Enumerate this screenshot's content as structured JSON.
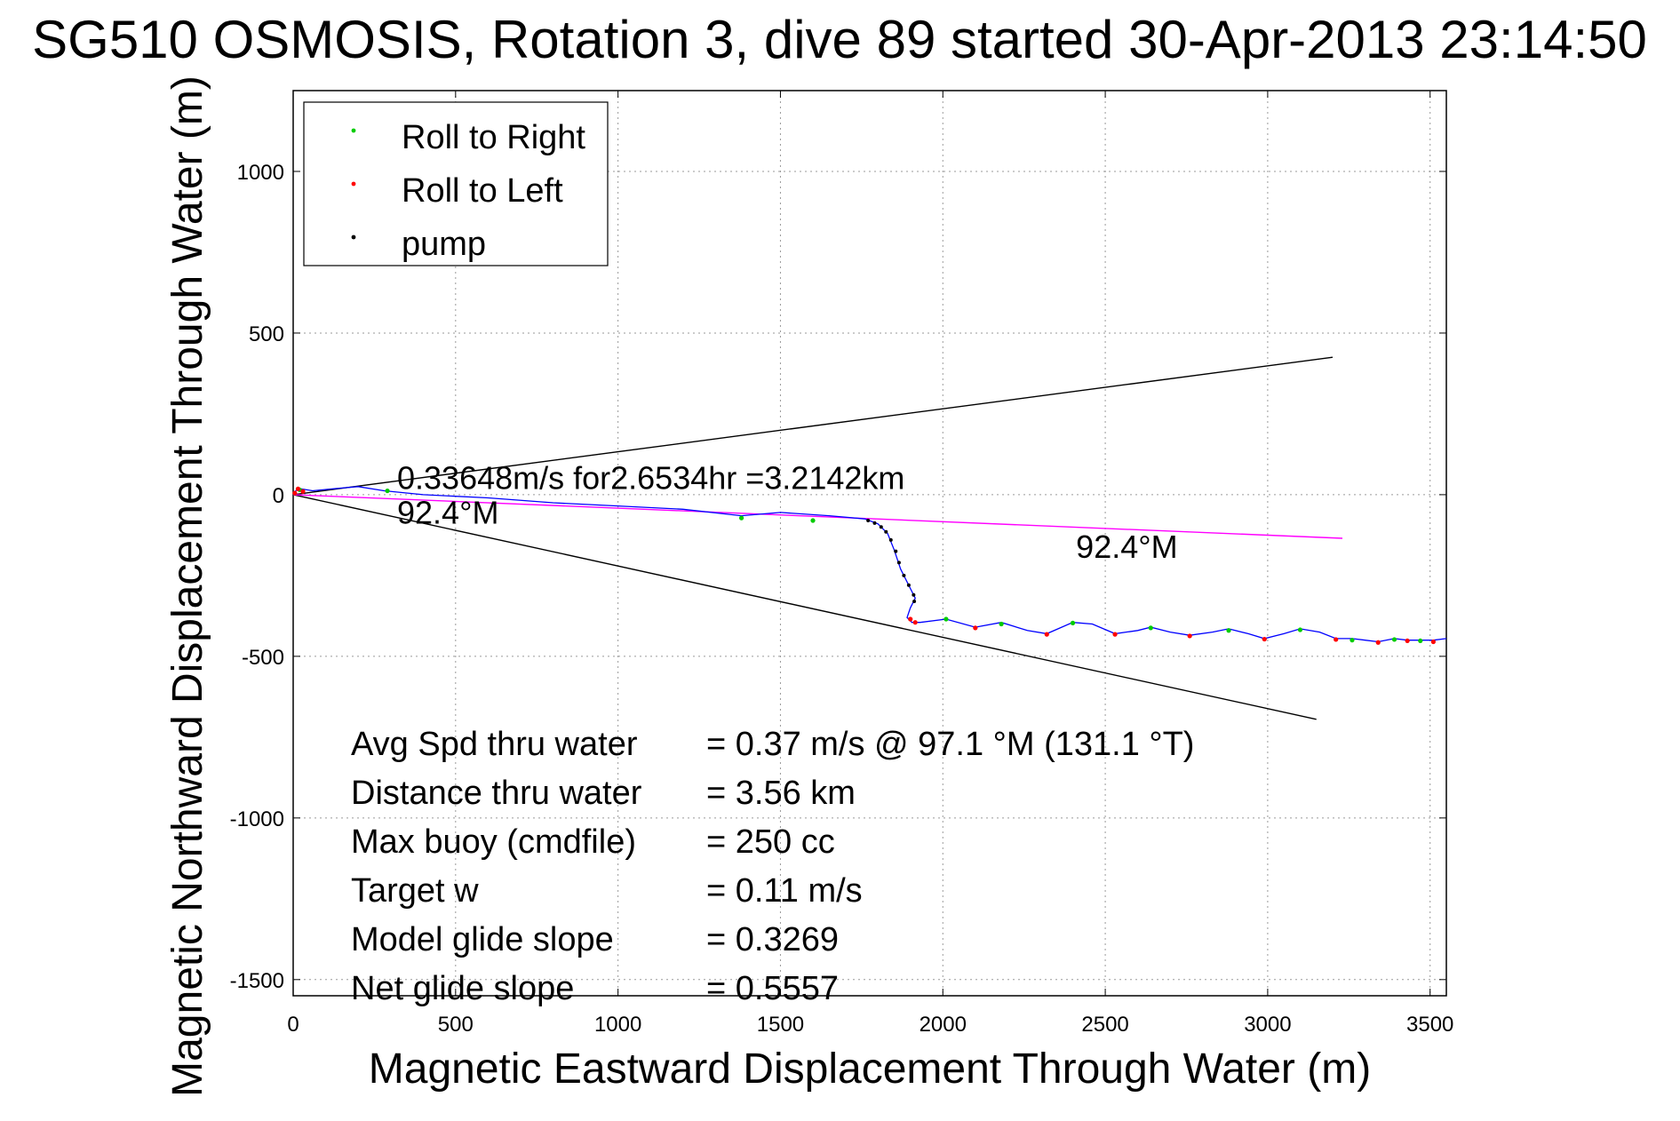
{
  "chart_data": {
    "type": "scatter",
    "title": "SG510 OSMOSIS, Rotation 3, dive 89 started 30-Apr-2013 23:14:50",
    "xlabel": "Magnetic Eastward Displacement Through Water (m)",
    "ylabel": "Magnetic Northward Displacement Through Water (m)",
    "xlim": [
      0,
      3550
    ],
    "ylim": [
      -1550,
      1250
    ],
    "xticks": [
      0,
      500,
      1000,
      1500,
      2000,
      2500,
      3000,
      3500
    ],
    "yticks": [
      -1500,
      -1000,
      -500,
      0,
      500,
      1000
    ],
    "grid": true,
    "legend_position": "top-left",
    "legend": [
      {
        "name": "Roll to Right",
        "color": "#00cc00"
      },
      {
        "name": "Roll to Left",
        "color": "#ff0000"
      },
      {
        "name": "pump",
        "color": "#000000"
      }
    ],
    "track": {
      "color": "#0000ff",
      "points": [
        [
          0,
          0
        ],
        [
          10,
          15
        ],
        [
          25,
          18
        ],
        [
          60,
          12
        ],
        [
          120,
          18
        ],
        [
          200,
          25
        ],
        [
          280,
          12
        ],
        [
          400,
          0
        ],
        [
          600,
          -10
        ],
        [
          800,
          -25
        ],
        [
          1000,
          -35
        ],
        [
          1200,
          -45
        ],
        [
          1380,
          -65
        ],
        [
          1500,
          -55
        ],
        [
          1650,
          -65
        ],
        [
          1760,
          -75
        ],
        [
          1800,
          -90
        ],
        [
          1830,
          -120
        ],
        [
          1850,
          -170
        ],
        [
          1870,
          -230
        ],
        [
          1900,
          -290
        ],
        [
          1915,
          -320
        ],
        [
          1900,
          -350
        ],
        [
          1890,
          -380
        ],
        [
          1905,
          -395
        ],
        [
          1930,
          -395
        ],
        [
          2010,
          -385
        ],
        [
          2100,
          -410
        ],
        [
          2180,
          -395
        ],
        [
          2260,
          -420
        ],
        [
          2320,
          -430
        ],
        [
          2400,
          -395
        ],
        [
          2460,
          -400
        ],
        [
          2530,
          -430
        ],
        [
          2600,
          -420
        ],
        [
          2640,
          -410
        ],
        [
          2700,
          -425
        ],
        [
          2760,
          -435
        ],
        [
          2830,
          -425
        ],
        [
          2880,
          -415
        ],
        [
          2940,
          -430
        ],
        [
          2990,
          -445
        ],
        [
          3050,
          -430
        ],
        [
          3100,
          -415
        ],
        [
          3160,
          -425
        ],
        [
          3210,
          -445
        ],
        [
          3260,
          -445
        ],
        [
          3300,
          -450
        ],
        [
          3340,
          -455
        ],
        [
          3390,
          -445
        ],
        [
          3430,
          -450
        ],
        [
          3470,
          -450
        ],
        [
          3510,
          -450
        ],
        [
          3550,
          -445
        ]
      ]
    },
    "roll_right_points": [
      [
        20,
        15
      ],
      [
        290,
        12
      ],
      [
        1380,
        -72
      ],
      [
        1600,
        -80
      ],
      [
        2010,
        -385
      ],
      [
        2180,
        -400
      ],
      [
        2400,
        -397
      ],
      [
        2640,
        -412
      ],
      [
        2880,
        -420
      ],
      [
        3100,
        -418
      ],
      [
        3260,
        -450
      ],
      [
        3390,
        -448
      ],
      [
        3470,
        -452
      ]
    ],
    "roll_left_points": [
      [
        5,
        5
      ],
      [
        15,
        18
      ],
      [
        30,
        10
      ],
      [
        1900,
        -385
      ],
      [
        1915,
        -395
      ],
      [
        2100,
        -412
      ],
      [
        2320,
        -432
      ],
      [
        2530,
        -432
      ],
      [
        2760,
        -437
      ],
      [
        2990,
        -447
      ],
      [
        3210,
        -448
      ],
      [
        3340,
        -457
      ],
      [
        3430,
        -452
      ],
      [
        3510,
        -455
      ]
    ],
    "pump_points": [
      [
        1770,
        -80
      ],
      [
        1790,
        -88
      ],
      [
        1810,
        -100
      ],
      [
        1825,
        -115
      ],
      [
        1840,
        -140
      ],
      [
        1855,
        -175
      ],
      [
        1865,
        -210
      ],
      [
        1880,
        -250
      ],
      [
        1895,
        -280
      ],
      [
        1910,
        -310
      ],
      [
        1912,
        -330
      ]
    ],
    "reference_lines": [
      {
        "name": "upper-bound",
        "color": "#000000",
        "points": [
          [
            0,
            0
          ],
          [
            3200,
            425
          ]
        ]
      },
      {
        "name": "lower-bound",
        "color": "#000000",
        "points": [
          [
            0,
            0
          ],
          [
            3150,
            -695
          ]
        ]
      },
      {
        "name": "heading",
        "color": "#ff00ff",
        "points": [
          [
            0,
            0
          ],
          [
            3230,
            -135
          ]
        ]
      }
    ],
    "annotations": [
      {
        "text": "0.33648m/s for2.6534hr =3.2142km",
        "x": 320,
        "y": 18
      },
      {
        "text": "92.4°M",
        "x": 320,
        "y": -90
      },
      {
        "text": "92.4°M",
        "x": 2410,
        "y": -195
      }
    ],
    "stats": [
      {
        "label": "Avg Spd thru water",
        "value": "=  0.37 m/s @  97.1 °M (131.1 °T)"
      },
      {
        "label": "Distance thru water",
        "value": "=  3.56 km"
      },
      {
        "label": "Max buoy (cmdfile)",
        "value": "= 250 cc"
      },
      {
        "label": "Target w",
        "value": "= 0.11 m/s"
      },
      {
        "label": "Model glide slope",
        "value": "= 0.3269"
      },
      {
        "label": "Net glide slope",
        "value": "= 0.5557"
      }
    ]
  }
}
